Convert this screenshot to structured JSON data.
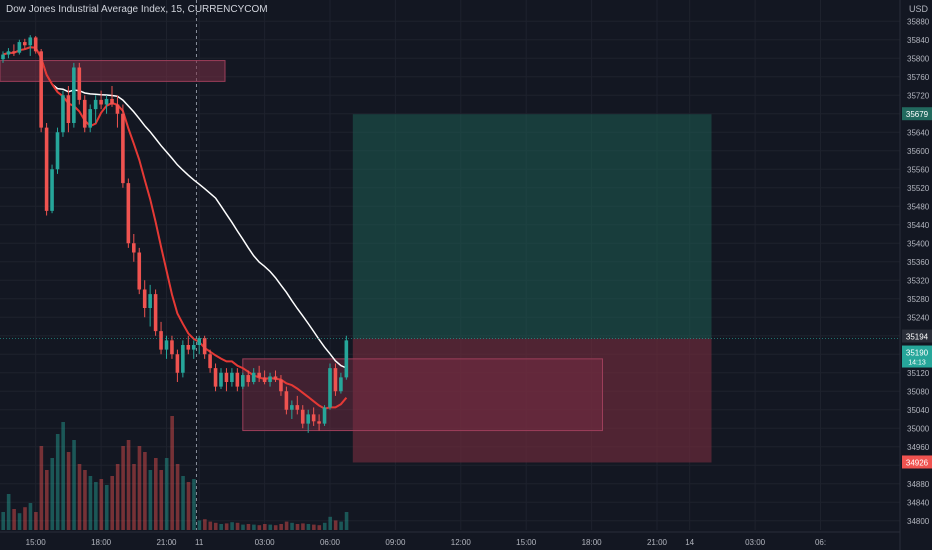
{
  "header": {
    "title": "Dow Jones Industrial Average Index, 15, CURRENCYCOM",
    "currency": "USD"
  },
  "colors": {
    "background": "#131722",
    "bull": "#26a69a",
    "bear": "#ef5350",
    "ma_fast": "#e53935",
    "ma_slow": "#ffffff",
    "target_zone": "#1e5c52",
    "stop_zone": "#6b2b3a",
    "box": "#7a2f45",
    "grid": "#1e222d",
    "axis_text": "#b2b5be"
  },
  "chart_data": {
    "type": "candlestick",
    "symbol": "Dow Jones Industrial Average Index",
    "interval": "15",
    "source": "CURRENCYCOM",
    "ylim": [
      34780,
      35900
    ],
    "y_ticks": [
      34800,
      34840,
      34880,
      34920,
      34960,
      35000,
      35040,
      35080,
      35120,
      35160,
      35200,
      35240,
      35280,
      35320,
      35360,
      35400,
      35440,
      35480,
      35520,
      35560,
      35600,
      35640,
      35680,
      35720,
      35760,
      35800,
      35840,
      35880
    ],
    "x_ticks": [
      {
        "label": "15:00",
        "bar": 6
      },
      {
        "label": "18:00",
        "bar": 18
      },
      {
        "label": "21:00",
        "bar": 30
      },
      {
        "label": "11",
        "bar": 36
      },
      {
        "label": "03:00",
        "bar": 48
      },
      {
        "label": "06:00",
        "bar": 60
      },
      {
        "label": "09:00",
        "bar": 72
      },
      {
        "label": "12:00",
        "bar": 84
      },
      {
        "label": "15:00",
        "bar": 96
      },
      {
        "label": "18:00",
        "bar": 108
      },
      {
        "label": "21:00",
        "bar": 120
      },
      {
        "label": "14",
        "bar": 126
      },
      {
        "label": "03:00",
        "bar": 138
      },
      {
        "label": "06:",
        "bar": 150
      }
    ],
    "session_break_bar": 35.5,
    "candles": [
      [
        35798,
        35815,
        35790,
        35808,
        30
      ],
      [
        35808,
        35822,
        35800,
        35815,
        60
      ],
      [
        35815,
        35830,
        35805,
        35812,
        35
      ],
      [
        35812,
        35840,
        35808,
        35835,
        28
      ],
      [
        35835,
        35842,
        35820,
        35828,
        38
      ],
      [
        35828,
        35850,
        35805,
        35845,
        45
      ],
      [
        35845,
        35848,
        35810,
        35815,
        30
      ],
      [
        35815,
        35820,
        35640,
        35650,
        140
      ],
      [
        35650,
        35660,
        35460,
        35470,
        100
      ],
      [
        35470,
        35570,
        35465,
        35560,
        120
      ],
      [
        35560,
        35650,
        35550,
        35640,
        160
      ],
      [
        35640,
        35730,
        35630,
        35720,
        180
      ],
      [
        35720,
        35740,
        35640,
        35660,
        130
      ],
      [
        35660,
        35790,
        35650,
        35780,
        150
      ],
      [
        35780,
        35790,
        35700,
        35710,
        110
      ],
      [
        35710,
        35720,
        35640,
        35650,
        100
      ],
      [
        35650,
        35700,
        35640,
        35690,
        90
      ],
      [
        35690,
        35720,
        35660,
        35710,
        80
      ],
      [
        35710,
        35730,
        35690,
        35700,
        85
      ],
      [
        35700,
        35720,
        35680,
        35712,
        75
      ],
      [
        35712,
        35740,
        35695,
        35700,
        90
      ],
      [
        35700,
        35720,
        35650,
        35680,
        110
      ],
      [
        35680,
        35700,
        35520,
        35530,
        140
      ],
      [
        35530,
        35540,
        35390,
        35400,
        150
      ],
      [
        35400,
        35420,
        35360,
        35380,
        110
      ],
      [
        35380,
        35390,
        35290,
        35300,
        140
      ],
      [
        35300,
        35320,
        35240,
        35260,
        130
      ],
      [
        35260,
        35310,
        35220,
        35290,
        100
      ],
      [
        35290,
        35300,
        35200,
        35210,
        120
      ],
      [
        35210,
        35230,
        35160,
        35170,
        100
      ],
      [
        35170,
        35200,
        35150,
        35190,
        120
      ],
      [
        35190,
        35200,
        35150,
        35160,
        190
      ],
      [
        35160,
        35170,
        35100,
        35120,
        110
      ],
      [
        35120,
        35190,
        35110,
        35180,
        90
      ],
      [
        35180,
        35200,
        35160,
        35170,
        80
      ],
      [
        35170,
        35190,
        35150,
        35180,
        85
      ],
      [
        35180,
        35200,
        35160,
        35195,
        16
      ],
      [
        35195,
        35200,
        35150,
        35160,
        18
      ],
      [
        35160,
        35170,
        35120,
        35130,
        14
      ],
      [
        35130,
        35140,
        35080,
        35090,
        12
      ],
      [
        35090,
        35130,
        35085,
        35120,
        10
      ],
      [
        35120,
        35130,
        35080,
        35100,
        11
      ],
      [
        35100,
        35130,
        35090,
        35120,
        13
      ],
      [
        35120,
        35130,
        35080,
        35090,
        12
      ],
      [
        35090,
        35120,
        35085,
        35115,
        9
      ],
      [
        35115,
        35125,
        35090,
        35100,
        10
      ],
      [
        35100,
        35130,
        35095,
        35120,
        9
      ],
      [
        35120,
        35135,
        35100,
        35110,
        8
      ],
      [
        35110,
        35125,
        35095,
        35100,
        10
      ],
      [
        35100,
        35120,
        35090,
        35112,
        9
      ],
      [
        35112,
        35125,
        35100,
        35105,
        8
      ],
      [
        35105,
        35115,
        35070,
        35080,
        10
      ],
      [
        35080,
        35090,
        35030,
        35040,
        14
      ],
      [
        35040,
        35060,
        35020,
        35050,
        12
      ],
      [
        35050,
        35070,
        35030,
        35040,
        10
      ],
      [
        35040,
        35050,
        35000,
        35010,
        11
      ],
      [
        35010,
        35040,
        34990,
        35030,
        10
      ],
      [
        35030,
        35045,
        35005,
        35015,
        9
      ],
      [
        35015,
        35030,
        34995,
        35010,
        8
      ],
      [
        35010,
        35050,
        35005,
        35045,
        12
      ],
      [
        35045,
        35140,
        35040,
        35130,
        22
      ],
      [
        35130,
        35140,
        35070,
        35080,
        16
      ],
      [
        35080,
        35120,
        35075,
        35110,
        14
      ],
      [
        35110,
        35200,
        35105,
        35190,
        30
      ]
    ],
    "levels": {
      "current_price": 35194,
      "current_price_label": "35194",
      "price_label_2": "35190",
      "price_label_2_sub": "14:13",
      "take_profit": 35679,
      "take_profit_label": "35679",
      "stop_loss": 34926,
      "stop_loss_label": "34926"
    }
  }
}
